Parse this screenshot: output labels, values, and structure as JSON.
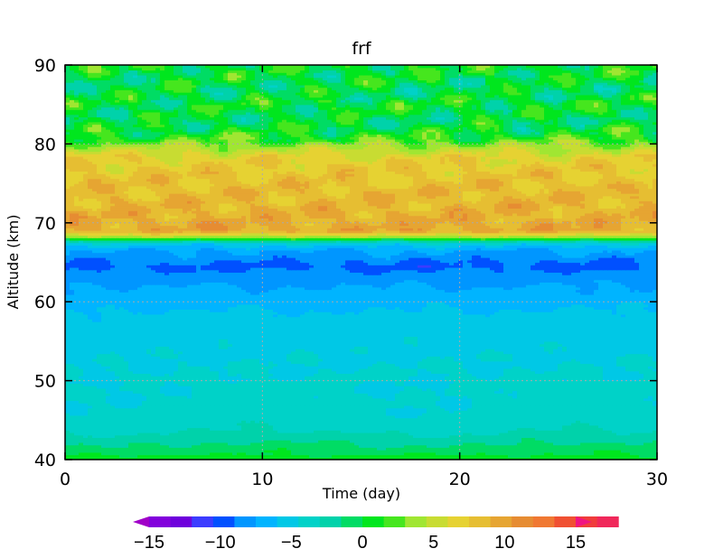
{
  "chart_data": {
    "type": "heatmap",
    "title": "frf",
    "xlabel": "Time (day)",
    "ylabel": "Altitude (km)",
    "xlim": [
      0,
      30
    ],
    "ylim": [
      40,
      90
    ],
    "x_ticks": [
      0,
      10,
      20,
      30
    ],
    "y_ticks": [
      40,
      50,
      60,
      70,
      80,
      90
    ],
    "grid": "dotted, at major ticks",
    "colorbar": {
      "placement": "bottom",
      "min": -15,
      "max": 15,
      "step": 1.5,
      "extend": "both",
      "tick_values": [
        -15,
        -10,
        -5,
        0,
        5,
        10,
        15
      ],
      "tick_labels": [
        "−15",
        "−10",
        "−5",
        "0",
        "5",
        "10",
        "15"
      ],
      "colors": [
        "#a000c8",
        "#8200dc",
        "#6e00dc",
        "#3c3cff",
        "#0050ff",
        "#0096ff",
        "#00b4ff",
        "#00c8e6",
        "#00d2c8",
        "#00d2aa",
        "#00dc64",
        "#00e61e",
        "#46e61e",
        "#a0e632",
        "#c8dc32",
        "#e6d232",
        "#e6be32",
        "#e6a532",
        "#e68c32",
        "#f07832",
        "#f05032",
        "#f03c3c",
        "#f0285a",
        "#f01482"
      ]
    },
    "altitude_levels_km": [
      40,
      41,
      42,
      43,
      44,
      46,
      50,
      54,
      58,
      62,
      63.5,
      64.5,
      65.5,
      66.5,
      67.3,
      67.8,
      68.2,
      69,
      71,
      73,
      75,
      77,
      78.5,
      79.5,
      80.5,
      81.5,
      83,
      85,
      87,
      89,
      90
    ],
    "mean_value_profile": [
      1.0,
      -0.5,
      -1.5,
      -2.5,
      -3.5,
      -4.0,
      -4.3,
      -4.8,
      -5.5,
      -7.5,
      -8.5,
      -9.5,
      -8.5,
      -7.5,
      -5.5,
      -1.5,
      3.5,
      9.5,
      9.0,
      8.5,
      8.0,
      7.5,
      6.5,
      4.5,
      2.0,
      0.5,
      -0.5,
      0.5,
      -0.5,
      0.3,
      0.5
    ]
  }
}
